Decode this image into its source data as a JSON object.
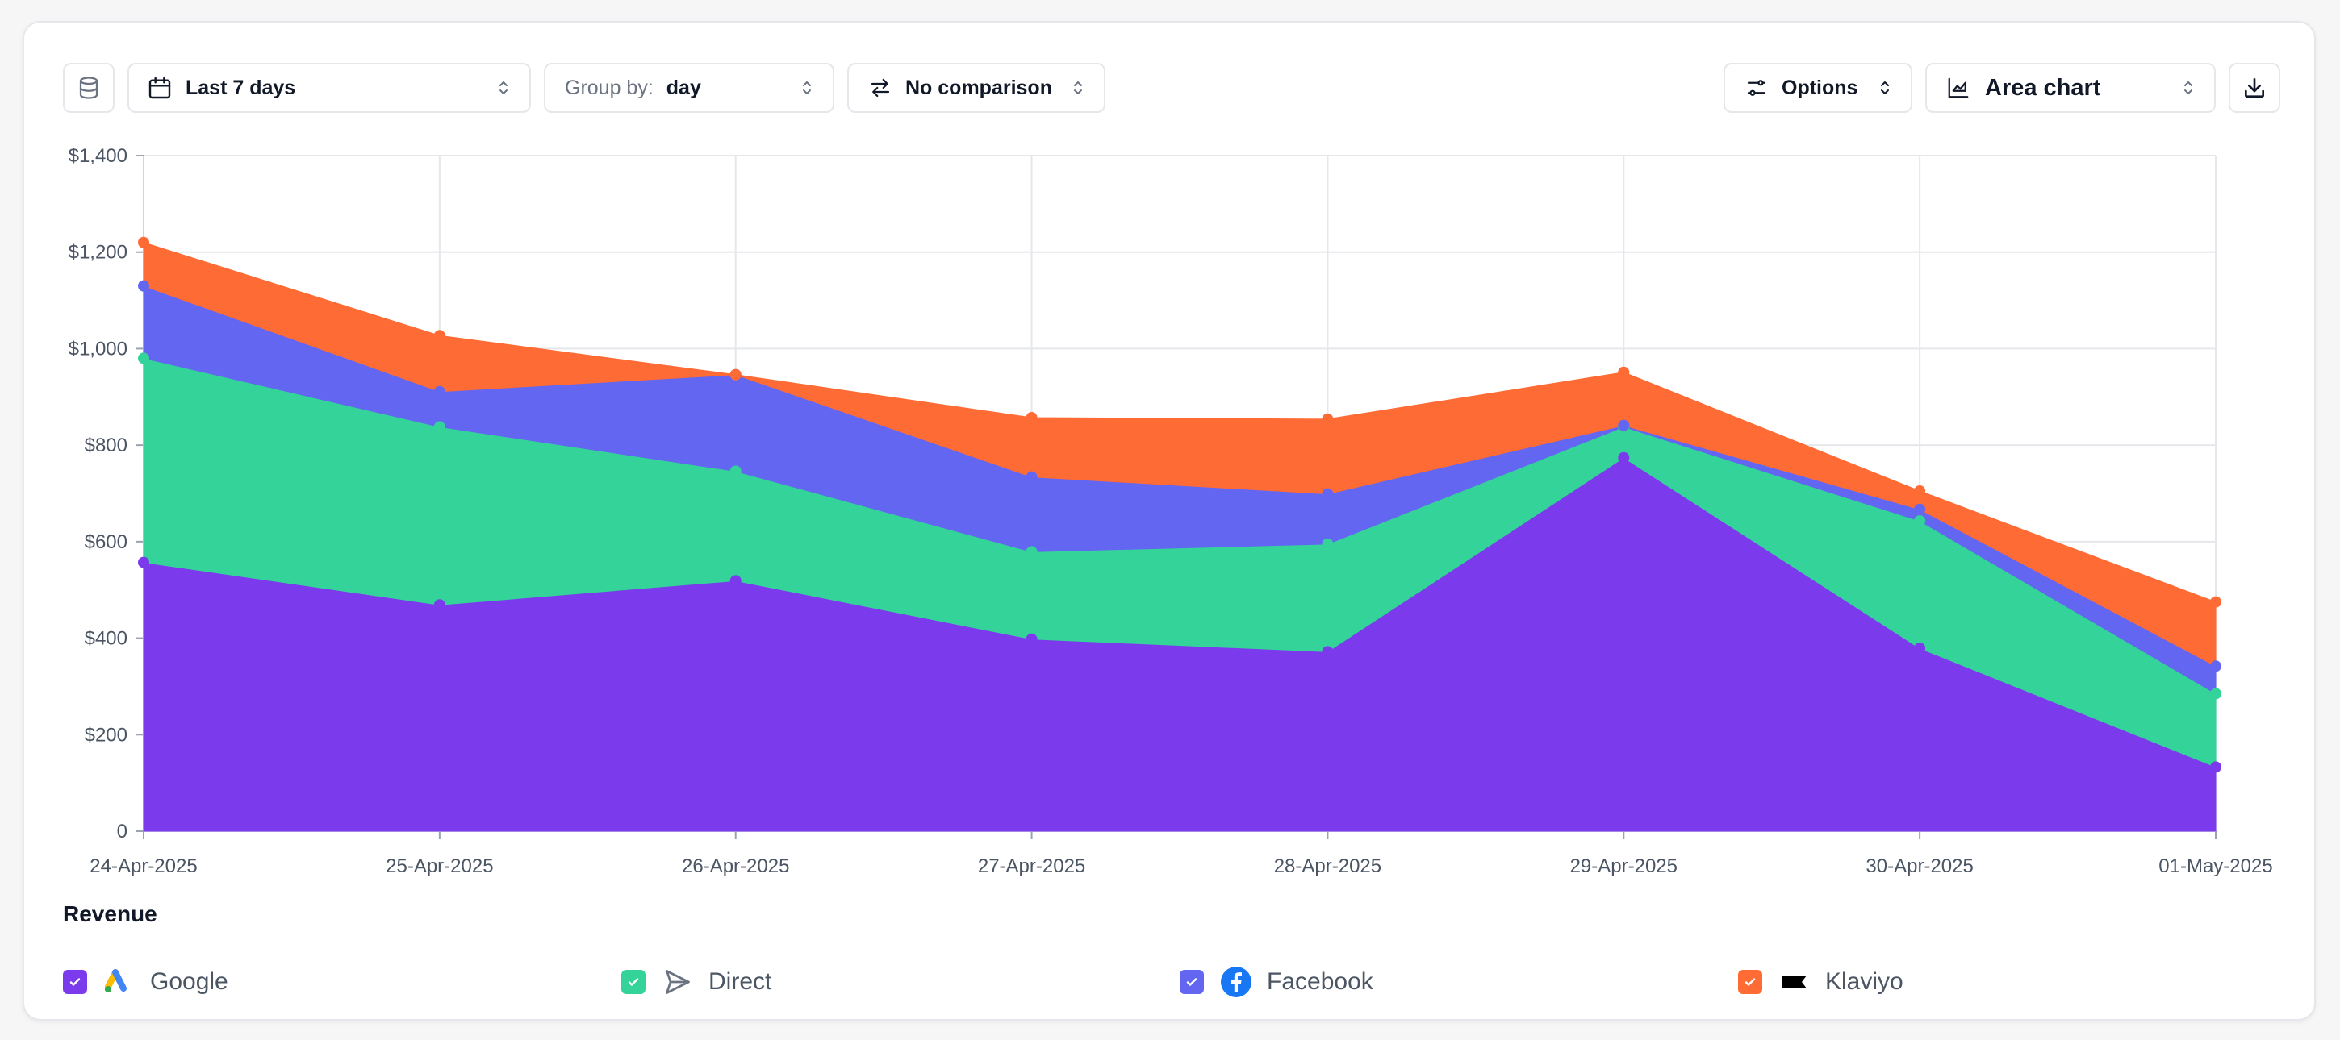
{
  "toolbar": {
    "date_range": "Last 7 days",
    "group_by_label": "Group by:",
    "group_by_value": "day",
    "comparison": "No comparison",
    "options": "Options",
    "chart_type": "Area chart"
  },
  "legend": {
    "title": "Revenue",
    "items": [
      {
        "label": "Google",
        "checked": true
      },
      {
        "label": "Direct",
        "checked": true
      },
      {
        "label": "Facebook",
        "checked": true
      },
      {
        "label": "Klaviyo",
        "checked": true
      }
    ]
  },
  "chart_data": {
    "type": "area",
    "stacked": true,
    "categories": [
      "24-Apr-2025",
      "25-Apr-2025",
      "26-Apr-2025",
      "27-Apr-2025",
      "28-Apr-2025",
      "29-Apr-2025",
      "30-Apr-2025",
      "01-May-2025"
    ],
    "y_ticks": [
      "0",
      "$200",
      "$400",
      "$600",
      "$800",
      "$1,000",
      "$1,200",
      "$1,400"
    ],
    "ylim": [
      0,
      1400
    ],
    "grid": true,
    "legend_position": "bottom",
    "series": [
      {
        "name": "Google",
        "color": "#7c3aed",
        "values": [
          557,
          469,
          519,
          398,
          372,
          774,
          379,
          133
        ]
      },
      {
        "name": "Direct",
        "color": "#34d399",
        "values": [
          423,
          369,
          227,
          181,
          223,
          64,
          264,
          152
        ]
      },
      {
        "name": "Facebook",
        "color": "#6366f1",
        "values": [
          150,
          73,
          200,
          155,
          104,
          3,
          24,
          57
        ]
      },
      {
        "name": "Klaviyo",
        "color": "#ff6b35",
        "values": [
          90,
          116,
          0,
          123,
          155,
          110,
          38,
          133
        ]
      }
    ]
  }
}
